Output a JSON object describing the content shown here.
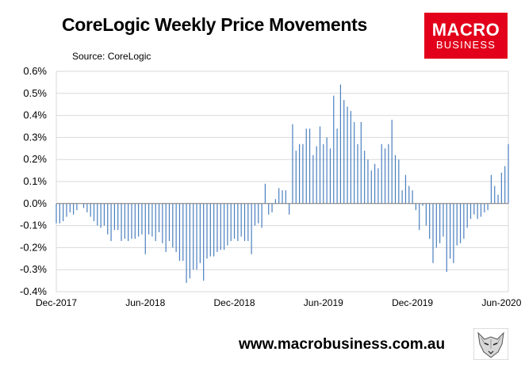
{
  "header": {
    "title": "CoreLogic Weekly Price Movements",
    "source": "Source: CoreLogic"
  },
  "logo": {
    "line1": "MACRO",
    "line2": "BUSINESS",
    "color": "#e2001a"
  },
  "footer": {
    "url": "www.macrobusiness.com.au",
    "mascot_icon": "wolf-head-icon"
  },
  "chart_data": {
    "type": "bar",
    "title": "CoreLogic Weekly Price Movements",
    "subtitle": "Source: CoreLogic",
    "xlabel": "",
    "ylabel": "",
    "ylim": [
      -0.4,
      0.6
    ],
    "y_ticks": [
      "-0.4%",
      "-0.3%",
      "-0.2%",
      "-0.1%",
      "0.0%",
      "0.1%",
      "0.2%",
      "0.3%",
      "0.4%",
      "0.5%",
      "0.6%"
    ],
    "x_tick_labels": [
      {
        "label": "Dec-2017",
        "week_index": 0
      },
      {
        "label": "Jun-2018",
        "week_index": 26
      },
      {
        "label": "Dec-2018",
        "week_index": 52
      },
      {
        "label": "Jun-2019",
        "week_index": 78
      },
      {
        "label": "Dec-2019",
        "week_index": 104
      },
      {
        "label": "Jun-2020",
        "week_index": 130
      }
    ],
    "grid": true,
    "legend": "none",
    "bar_color": "#4a7fbf",
    "series": [
      {
        "values": [
          -0.09,
          -0.09,
          -0.08,
          -0.06,
          -0.04,
          -0.05,
          -0.03,
          0,
          -0.02,
          -0.04,
          -0.06,
          -0.08,
          -0.1,
          -0.11,
          -0.1,
          -0.14,
          -0.17,
          -0.12,
          -0.12,
          -0.17,
          -0.16,
          -0.17,
          -0.16,
          -0.16,
          -0.15,
          -0.14,
          -0.23,
          -0.14,
          -0.15,
          -0.17,
          -0.13,
          -0.18,
          -0.22,
          -0.17,
          -0.2,
          -0.22,
          -0.26,
          -0.26,
          -0.36,
          -0.34,
          -0.3,
          -0.3,
          -0.27,
          -0.35,
          -0.25,
          -0.24,
          -0.24,
          -0.22,
          -0.21,
          -0.21,
          -0.19,
          -0.17,
          -0.16,
          -0.17,
          -0.15,
          -0.17,
          -0.17,
          -0.23,
          -0.1,
          -0.09,
          -0.11,
          0.09,
          -0.05,
          -0.04,
          0.02,
          0.07,
          0.06,
          0.06,
          -0.05,
          0.36,
          0.24,
          0.27,
          0.27,
          0.34,
          0.34,
          0.22,
          0.26,
          0.35,
          0.27,
          0.3,
          0.25,
          0.49,
          0.34,
          0.54,
          0.47,
          0.44,
          0.42,
          0.37,
          0.27,
          0.37,
          0.24,
          0.2,
          0.15,
          0.18,
          0.16,
          0.27,
          0.25,
          0.27,
          0.38,
          0.22,
          0.2,
          0.06,
          0.13,
          0.08,
          0.06,
          -0.03,
          -0.12,
          -0.01,
          -0.1,
          -0.16,
          -0.27,
          -0.2,
          -0.18,
          -0.15,
          -0.31,
          -0.25,
          -0.27,
          -0.19,
          -0.18,
          -0.16,
          -0.11,
          -0.07,
          -0.05,
          -0.07,
          -0.06,
          -0.04,
          -0.03,
          0.13,
          0.08,
          0.04,
          0.14,
          0.17,
          0.27
        ]
      }
    ]
  }
}
